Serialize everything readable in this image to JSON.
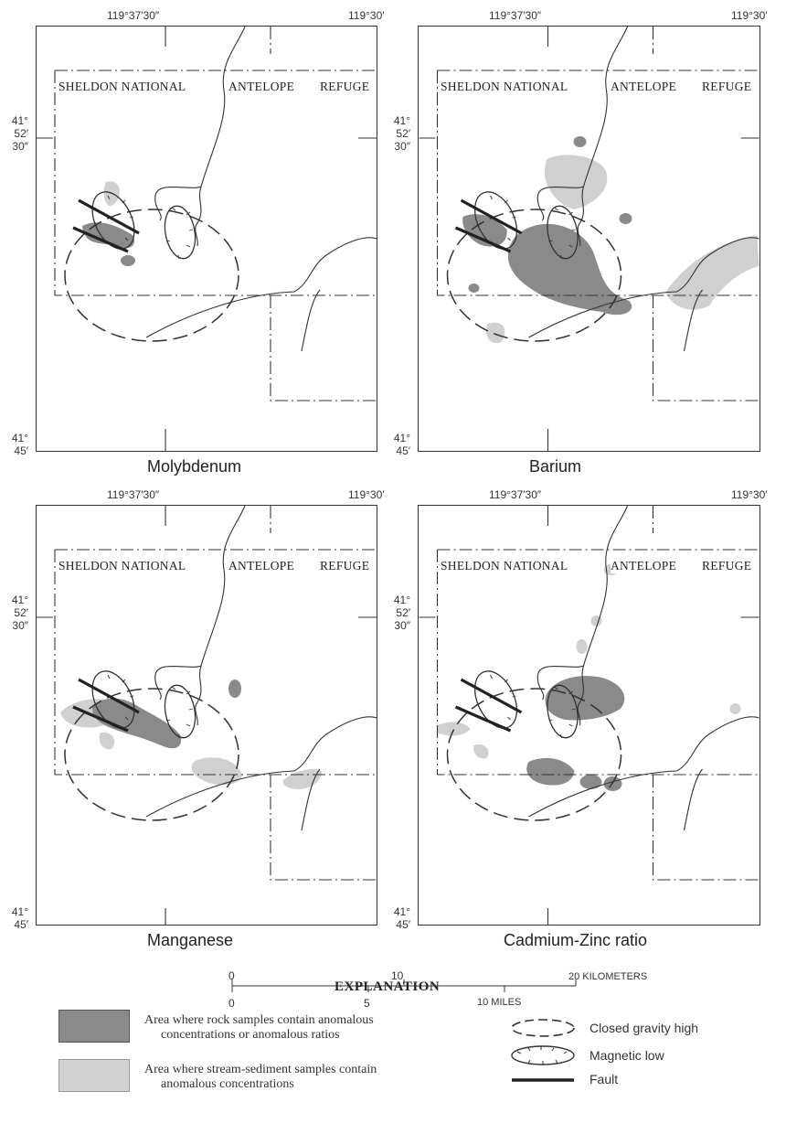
{
  "colors": {
    "rock_anomaly": "#8a8a8a",
    "stream_anomaly": "#cfcfcf",
    "line": "#333333"
  },
  "panels": [
    {
      "caption": "Molybdenum",
      "lon_left": "119°37′30″",
      "lon_right": "119°30′",
      "lat_top": [
        "41°",
        "52′",
        "30″"
      ],
      "lat_bottom": [
        "41°",
        "45′"
      ],
      "refuge_words": [
        "SHELDON NATIONAL",
        "ANTELOPE",
        "REFUGE"
      ]
    },
    {
      "caption": "Barium",
      "lon_left": "119°37′30″",
      "lon_right": "119°30′",
      "lat_top": [
        "41°",
        "52′",
        "30″"
      ],
      "lat_bottom": [
        "41°",
        "45′"
      ],
      "refuge_words": [
        "SHELDON NATIONAL",
        "ANTELOPE",
        "REFUGE"
      ]
    },
    {
      "caption": "Manganese",
      "lon_left": "119°37′30″",
      "lon_right": "119°30′",
      "lat_top": [
        "41°",
        "52′",
        "30″"
      ],
      "lat_bottom": [
        "41°",
        "45′"
      ],
      "refuge_words": [
        "SHELDON NATIONAL",
        "ANTELOPE",
        "REFUGE"
      ]
    },
    {
      "caption": "Cadmium-Zinc ratio",
      "lon_left": "119°37′30″",
      "lon_right": "119°30′",
      "lat_top": [
        "41°",
        "52′",
        "30″"
      ],
      "lat_bottom": [
        "41°",
        "45′"
      ],
      "refuge_words": [
        "SHELDON NATIONAL",
        "ANTELOPE",
        "REFUGE"
      ]
    }
  ],
  "scale": {
    "km_labels": [
      "0",
      "10",
      "20 KILOMETERS"
    ],
    "mile_labels": [
      "0",
      "5",
      "10 MILES"
    ]
  },
  "explanation": {
    "title": "EXPLANATION",
    "rock_line1": "Area where rock samples contain anomalous",
    "rock_line2": "concentrations or anomalous ratios",
    "stream_line1": "Area where stream-sediment samples contain",
    "stream_line2": "anomalous concentrations",
    "gravity": "Closed gravity high",
    "magnetic": "Magnetic low",
    "fault": "Fault"
  }
}
